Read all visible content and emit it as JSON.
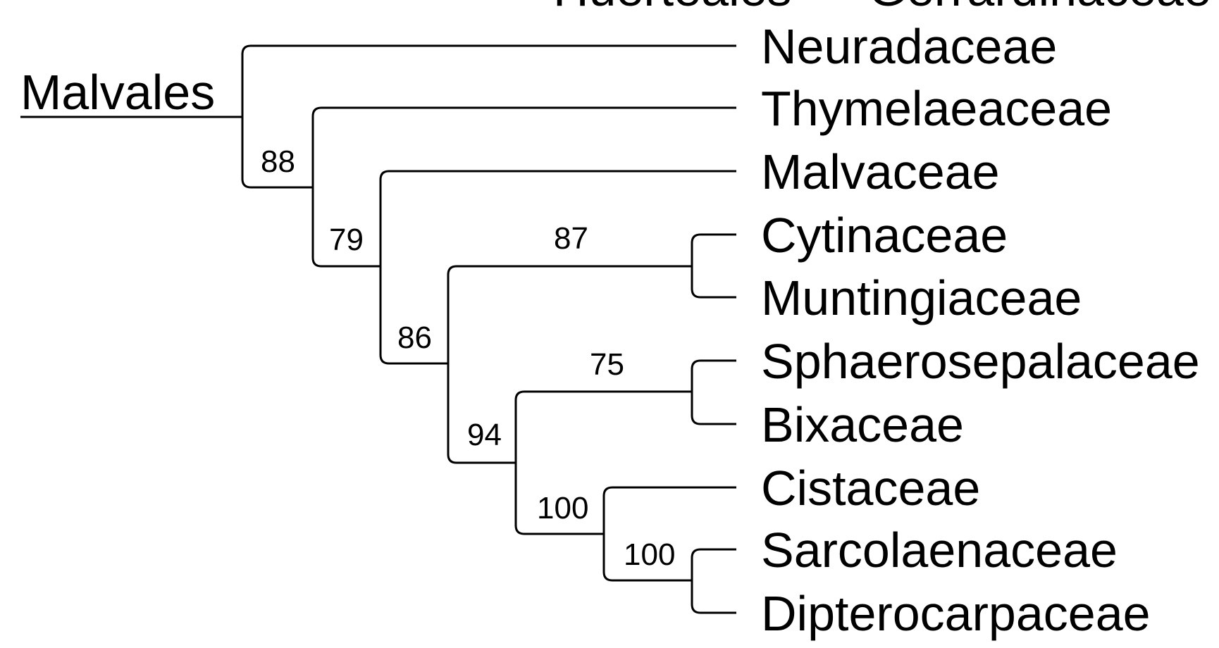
{
  "order_label": "Malvales",
  "cropped_header": "Huerteales — Gerrardinaceae",
  "taxa": [
    "Neuradaceae",
    "Thymelaeaceae",
    "Malvaceae",
    "Cytinaceae",
    "Muntingiaceae",
    "Sphaerosepalaceae",
    "Bixaceae",
    "Cistaceae",
    "Sarcolaenaceae",
    "Dipterocarpaceae"
  ],
  "support_values": {
    "thymelaeaceae_to_dipterocarpaceae": "88",
    "malvaceae_to_dipterocarpaceae": "79",
    "cytinaceae_to_dipterocarpaceae": "86",
    "cytinaceae_muntingiaceae": "87",
    "sphaerosepalaceae_to_dipterocarpaceae": "94",
    "sphaerosepalaceae_bixaceae": "75",
    "cistaceae_to_dipterocarpaceae": "100",
    "sarcolaenaceae_dipterocarpaceae": "100"
  },
  "colors": {
    "line": "#000000",
    "text": "#000000",
    "background": "#ffffff"
  }
}
